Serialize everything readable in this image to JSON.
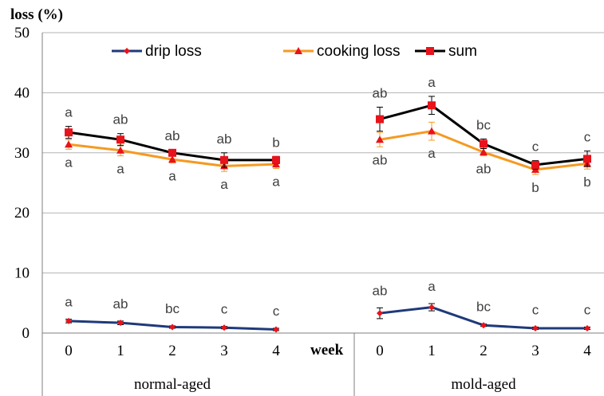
{
  "chart_data": {
    "type": "line",
    "ylabel": "loss (%)",
    "xlabel": "week",
    "ylim": [
      0,
      50
    ],
    "yticks": [
      0,
      10,
      20,
      30,
      40,
      50
    ],
    "groups": [
      {
        "name": "normal-aged",
        "x": [
          "0",
          "1",
          "2",
          "3",
          "4"
        ],
        "series": [
          {
            "name": "drip loss",
            "values": [
              2.0,
              1.7,
              1.0,
              0.9,
              0.6
            ],
            "errors": [
              0.3,
              0.3,
              0.2,
              0.2,
              0.2
            ]
          },
          {
            "name": "cooking loss",
            "values": [
              31.4,
              30.4,
              28.9,
              27.8,
              28.1
            ],
            "errors": [
              0.8,
              0.9,
              0.6,
              0.9,
              0.7
            ]
          },
          {
            "name": "sum",
            "values": [
              33.4,
              32.2,
              30.0,
              28.8,
              28.8
            ],
            "errors": [
              1.0,
              1.0,
              0.5,
              1.2,
              0.6
            ]
          }
        ],
        "letters_top": [
          "a",
          "ab",
          "ab",
          "ab",
          "b"
        ],
        "letters_mid": [
          "a",
          "a",
          "a",
          "a",
          "a"
        ],
        "letters_drip": [
          "a",
          "ab",
          "bc",
          "c",
          "c"
        ]
      },
      {
        "name": "mold-aged",
        "x": [
          "0",
          "1",
          "2",
          "3",
          "4"
        ],
        "series": [
          {
            "name": "drip loss",
            "values": [
              3.3,
              4.3,
              1.3,
              0.8,
              0.8
            ],
            "errors": [
              0.9,
              0.6,
              0.2,
              0.2,
              0.2
            ]
          },
          {
            "name": "cooking loss",
            "values": [
              32.2,
              33.6,
              30.1,
              27.2,
              28.2
            ],
            "errors": [
              1.2,
              1.5,
              0.6,
              0.8,
              0.9
            ]
          },
          {
            "name": "sum",
            "values": [
              35.6,
              37.9,
              31.5,
              28.0,
              29.0
            ],
            "errors": [
              2.0,
              1.5,
              0.8,
              0.7,
              1.3
            ]
          }
        ],
        "letters_top": [
          "ab",
          "a",
          "bc",
          "c",
          "c"
        ],
        "letters_mid": [
          "ab",
          "a",
          "ab",
          "b",
          "b"
        ],
        "letters_drip": [
          "ab",
          "a",
          "bc",
          "c",
          "c"
        ]
      }
    ],
    "legend": [
      {
        "name": "drip loss",
        "color": "#1F3A7A",
        "marker": "diamond"
      },
      {
        "name": "cooking loss",
        "color": "#F59A22",
        "marker": "triangle"
      },
      {
        "name": "sum",
        "color": "#000000",
        "marker": "square"
      }
    ],
    "legend_placement": "top",
    "grid": "horizontal",
    "colors": {
      "drip_line": "#1F3A7A",
      "cooking_line": "#F59A22",
      "sum_line": "#000000",
      "marker": "#E8131B"
    }
  }
}
